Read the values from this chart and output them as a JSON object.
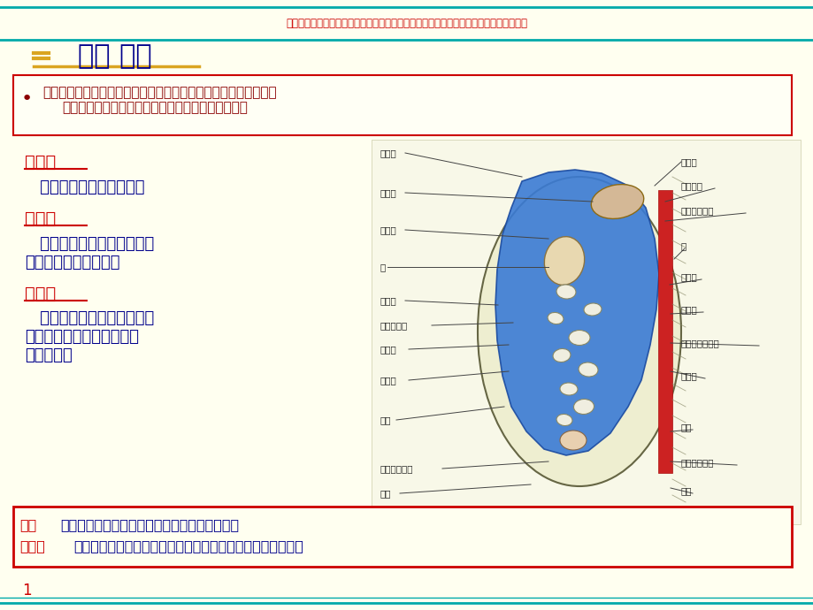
{
  "bg_color": "#FFFFF0",
  "border_color": "#00AAAA",
  "title_text": "一、 概述",
  "title_color": "#00008B",
  "title_underline_color": "#DAA520",
  "top_notice": "文档仅供参考，不能作为科学依据，请勿模仿；如有不当之处，请联系网站或本人删除。",
  "top_notice_color": "#CC0000",
  "definition_color": "#8B0000",
  "def_box_border": "#CC0000",
  "section1_title": "壁腹膜",
  "section1_title_color": "#CC0000",
  "section1_text": "   衬于腹、盆腔壁的腹膜。",
  "section1_text_color": "#00008B",
  "section2_title": "脏腹膜",
  "section2_title_color": "#CC0000",
  "section2_text_color": "#00008B",
  "section3_title": "腹膜腔",
  "section3_title_color": "#CC0000",
  "section3_text_color": "#00008B",
  "bottom_box_border": "#CC0000",
  "bottom_box_bg": "#FFFFF0",
  "page_num": "1",
  "page_num_color": "#CC0000",
  "label_color": "#222222",
  "line_color": "#444444"
}
